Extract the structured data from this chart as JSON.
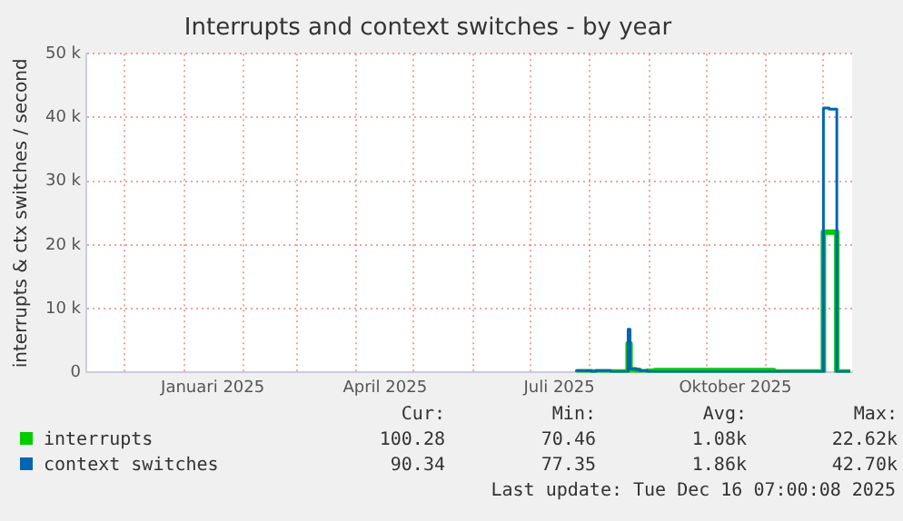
{
  "chart_data": {
    "type": "step",
    "title": "Interrupts and context switches - by year",
    "ylabel": "interrupts & ctx switches / second",
    "x": [
      "2025-07-25",
      "2025-08-02",
      "2025-08-04",
      "2025-08-12",
      "2025-08-21",
      "2025-08-22",
      "2025-08-25",
      "2025-08-27",
      "2025-08-31",
      "2025-09-04",
      "2025-09-25",
      "2025-10-15",
      "2025-11-05",
      "2025-12-01",
      "2025-12-04",
      "2025-12-08",
      "2025-12-09",
      "2025-12-15"
    ],
    "series": [
      {
        "name": "interrupts",
        "color": "#00cc00",
        "values": [
          100,
          100,
          100,
          100,
          100,
          4500,
          400,
          300,
          100,
          200,
          300,
          300,
          300,
          100,
          22000,
          22000,
          100,
          100
        ]
      },
      {
        "name": "context switches",
        "color": "#0066b3",
        "values": [
          100,
          300,
          100,
          300,
          100,
          6800,
          600,
          500,
          300,
          100,
          100,
          100,
          100,
          100,
          41500,
          41300,
          100,
          100
        ]
      }
    ],
    "xlim": [
      "2024-11-11",
      "2025-12-16"
    ],
    "xticks": [
      {
        "value": "2024-12-01",
        "label": null
      },
      {
        "value": "2025-01-01",
        "label": null
      },
      {
        "value": "2025-01-16",
        "label": "Januari 2025"
      },
      {
        "value": "2025-02-01",
        "label": null
      },
      {
        "value": "2025-03-01",
        "label": null
      },
      {
        "value": "2025-04-01",
        "label": null
      },
      {
        "value": "2025-04-16",
        "label": "April 2025"
      },
      {
        "value": "2025-05-01",
        "label": null
      },
      {
        "value": "2025-06-01",
        "label": null
      },
      {
        "value": "2025-07-01",
        "label": null
      },
      {
        "value": "2025-07-16",
        "label": "Juli 2025"
      },
      {
        "value": "2025-08-01",
        "label": null
      },
      {
        "value": "2025-09-01",
        "label": null
      },
      {
        "value": "2025-10-01",
        "label": null
      },
      {
        "value": "2025-10-16",
        "label": "Oktober 2025"
      },
      {
        "value": "2025-11-01",
        "label": null
      },
      {
        "value": "2025-12-01",
        "label": null
      }
    ],
    "ylim": [
      0,
      50000
    ],
    "yticks": [
      {
        "value": 0,
        "label": "0"
      },
      {
        "value": 10000,
        "label": "10 k"
      },
      {
        "value": 20000,
        "label": "20 k"
      },
      {
        "value": 30000,
        "label": "30 k"
      },
      {
        "value": 40000,
        "label": "40 k"
      },
      {
        "value": 50000,
        "label": "50 k"
      }
    ],
    "grid": true,
    "legend": "bottom",
    "annotations": [
      "Cur:",
      "Min:",
      "Avg:",
      "Max:",
      "100.28",
      "70.46",
      "1.08k",
      "22.62k",
      "90.34",
      "77.35",
      "1.86k",
      "42.70k",
      "Last update: Tue Dec 16 07:00:08 2025"
    ]
  }
}
